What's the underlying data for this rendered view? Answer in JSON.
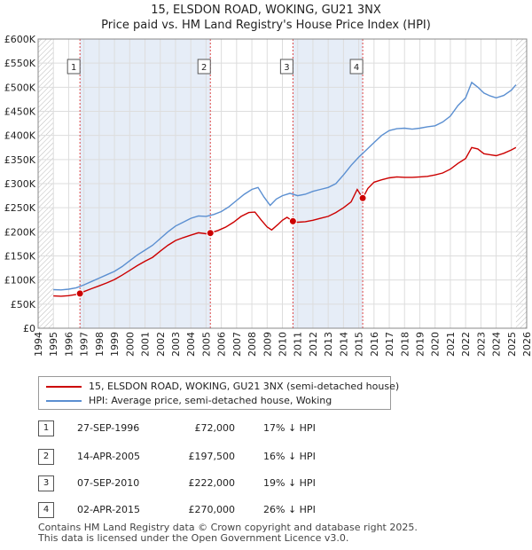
{
  "title_line1": "15, ELSDON ROAD, WOKING, GU21 3NX",
  "title_line2": "Price paid vs. HM Land Registry's House Price Index (HPI)",
  "legend": {
    "property_label": "15, ELSDON ROAD, WOKING, GU21 3NX (semi-detached house)",
    "hpi_label": "HPI: Average price, semi-detached house, Woking",
    "property_color": "#cc0000",
    "hpi_color": "#5b8fd1"
  },
  "transactions": [
    {
      "num": "1",
      "date": "27-SEP-1996",
      "price": "£72,000",
      "hpi": "17% ↓ HPI"
    },
    {
      "num": "2",
      "date": "14-APR-2005",
      "price": "£197,500",
      "hpi": "16% ↓ HPI"
    },
    {
      "num": "3",
      "date": "07-SEP-2010",
      "price": "£222,000",
      "hpi": "19% ↓ HPI"
    },
    {
      "num": "4",
      "date": "02-APR-2015",
      "price": "£270,000",
      "hpi": "26% ↓ HPI"
    }
  ],
  "footer_line1": "Contains HM Land Registry data © Crown copyright and database right 2025.",
  "footer_line2": "This data is licensed under the Open Government Licence v3.0.",
  "chart_data": {
    "type": "line",
    "title": "15, ELSDON ROAD, WOKING, GU21 3NX — Price paid vs. HM Land Registry's House Price Index (HPI)",
    "xlim": [
      1994,
      2026
    ],
    "ylim": [
      0,
      600000
    ],
    "x_ticks": [
      1994,
      1995,
      1996,
      1997,
      1998,
      1999,
      2000,
      2001,
      2002,
      2003,
      2004,
      2005,
      2006,
      2007,
      2008,
      2009,
      2010,
      2011,
      2012,
      2013,
      2014,
      2015,
      2016,
      2017,
      2018,
      2019,
      2020,
      2021,
      2022,
      2023,
      2024,
      2025,
      2026
    ],
    "y_ticks": [
      0,
      50000,
      100000,
      150000,
      200000,
      250000,
      300000,
      350000,
      400000,
      450000,
      500000,
      550000,
      600000
    ],
    "y_tick_labels": [
      "£0",
      "£50K",
      "£100K",
      "£150K",
      "£200K",
      "£250K",
      "£300K",
      "£350K",
      "£400K",
      "£450K",
      "£500K",
      "£550K",
      "£600K"
    ],
    "data_range": [
      1995.0,
      2025.3
    ],
    "series": [
      {
        "name": "15, ELSDON ROAD, WOKING, GU21 3NX (semi-detached house)",
        "color": "#cc0000",
        "points": [
          [
            1995.0,
            67000
          ],
          [
            1995.5,
            66500
          ],
          [
            1996.0,
            67500
          ],
          [
            1996.5,
            70000
          ],
          [
            1996.74,
            72000
          ],
          [
            1997.0,
            76000
          ],
          [
            1997.5,
            82000
          ],
          [
            1998.0,
            88000
          ],
          [
            1998.5,
            94000
          ],
          [
            1999.0,
            101000
          ],
          [
            1999.5,
            110000
          ],
          [
            2000.0,
            120000
          ],
          [
            2000.5,
            130000
          ],
          [
            2001.0,
            139000
          ],
          [
            2001.5,
            147000
          ],
          [
            2002.0,
            160000
          ],
          [
            2002.5,
            172000
          ],
          [
            2003.0,
            182000
          ],
          [
            2003.5,
            188000
          ],
          [
            2004.0,
            193000
          ],
          [
            2004.5,
            198000
          ],
          [
            2005.0,
            196000
          ],
          [
            2005.28,
            197500
          ],
          [
            2005.8,
            203000
          ],
          [
            2006.3,
            210000
          ],
          [
            2006.8,
            220000
          ],
          [
            2007.3,
            232000
          ],
          [
            2007.8,
            240000
          ],
          [
            2008.2,
            241000
          ],
          [
            2008.6,
            225000
          ],
          [
            2009.0,
            210000
          ],
          [
            2009.3,
            204000
          ],
          [
            2009.7,
            215000
          ],
          [
            2010.0,
            224000
          ],
          [
            2010.3,
            230000
          ],
          [
            2010.69,
            222000
          ],
          [
            2011.0,
            220000
          ],
          [
            2011.5,
            221000
          ],
          [
            2012.0,
            224000
          ],
          [
            2012.5,
            228000
          ],
          [
            2013.0,
            232000
          ],
          [
            2013.5,
            240000
          ],
          [
            2014.0,
            250000
          ],
          [
            2014.5,
            262000
          ],
          [
            2014.9,
            288000
          ],
          [
            2015.26,
            270000
          ],
          [
            2015.6,
            290000
          ],
          [
            2016.0,
            303000
          ],
          [
            2016.5,
            308000
          ],
          [
            2017.0,
            312000
          ],
          [
            2017.5,
            314000
          ],
          [
            2018.0,
            313000
          ],
          [
            2018.5,
            313000
          ],
          [
            2019.0,
            314000
          ],
          [
            2019.5,
            315000
          ],
          [
            2020.0,
            318000
          ],
          [
            2020.5,
            322000
          ],
          [
            2021.0,
            330000
          ],
          [
            2021.5,
            342000
          ],
          [
            2022.0,
            352000
          ],
          [
            2022.4,
            375000
          ],
          [
            2022.8,
            372000
          ],
          [
            2023.2,
            362000
          ],
          [
            2023.6,
            360000
          ],
          [
            2024.0,
            358000
          ],
          [
            2024.5,
            363000
          ],
          [
            2025.0,
            370000
          ],
          [
            2025.3,
            375000
          ]
        ]
      },
      {
        "name": "HPI: Average price, semi-detached house, Woking",
        "color": "#5b8fd1",
        "points": [
          [
            1995.0,
            80000
          ],
          [
            1995.5,
            79500
          ],
          [
            1996.0,
            81000
          ],
          [
            1996.5,
            84000
          ],
          [
            1997.0,
            90000
          ],
          [
            1997.5,
            97000
          ],
          [
            1998.0,
            104000
          ],
          [
            1998.5,
            111000
          ],
          [
            1999.0,
            118000
          ],
          [
            1999.5,
            128000
          ],
          [
            2000.0,
            140000
          ],
          [
            2000.5,
            152000
          ],
          [
            2001.0,
            162000
          ],
          [
            2001.5,
            172000
          ],
          [
            2002.0,
            186000
          ],
          [
            2002.5,
            200000
          ],
          [
            2003.0,
            212000
          ],
          [
            2003.5,
            220000
          ],
          [
            2004.0,
            228000
          ],
          [
            2004.5,
            233000
          ],
          [
            2005.0,
            232000
          ],
          [
            2005.5,
            236000
          ],
          [
            2006.0,
            242000
          ],
          [
            2006.5,
            252000
          ],
          [
            2007.0,
            265000
          ],
          [
            2007.5,
            278000
          ],
          [
            2008.0,
            288000
          ],
          [
            2008.4,
            292000
          ],
          [
            2008.8,
            272000
          ],
          [
            2009.2,
            255000
          ],
          [
            2009.6,
            268000
          ],
          [
            2010.0,
            275000
          ],
          [
            2010.5,
            280000
          ],
          [
            2011.0,
            275000
          ],
          [
            2011.5,
            278000
          ],
          [
            2012.0,
            284000
          ],
          [
            2012.5,
            288000
          ],
          [
            2013.0,
            292000
          ],
          [
            2013.5,
            300000
          ],
          [
            2014.0,
            318000
          ],
          [
            2014.5,
            338000
          ],
          [
            2015.0,
            355000
          ],
          [
            2015.5,
            370000
          ],
          [
            2016.0,
            385000
          ],
          [
            2016.5,
            400000
          ],
          [
            2017.0,
            410000
          ],
          [
            2017.5,
            414000
          ],
          [
            2018.0,
            415000
          ],
          [
            2018.5,
            413000
          ],
          [
            2019.0,
            415000
          ],
          [
            2019.5,
            418000
          ],
          [
            2020.0,
            420000
          ],
          [
            2020.5,
            428000
          ],
          [
            2021.0,
            440000
          ],
          [
            2021.5,
            462000
          ],
          [
            2022.0,
            478000
          ],
          [
            2022.4,
            510000
          ],
          [
            2022.8,
            500000
          ],
          [
            2023.2,
            488000
          ],
          [
            2023.6,
            482000
          ],
          [
            2024.0,
            478000
          ],
          [
            2024.5,
            483000
          ],
          [
            2025.0,
            494000
          ],
          [
            2025.3,
            505000
          ]
        ]
      }
    ],
    "sales": [
      {
        "label": "1",
        "x": 1996.74,
        "y": 72000
      },
      {
        "label": "2",
        "x": 2005.28,
        "y": 197500
      },
      {
        "label": "3",
        "x": 2010.69,
        "y": 222000
      },
      {
        "label": "4",
        "x": 2015.26,
        "y": 270000
      }
    ]
  }
}
